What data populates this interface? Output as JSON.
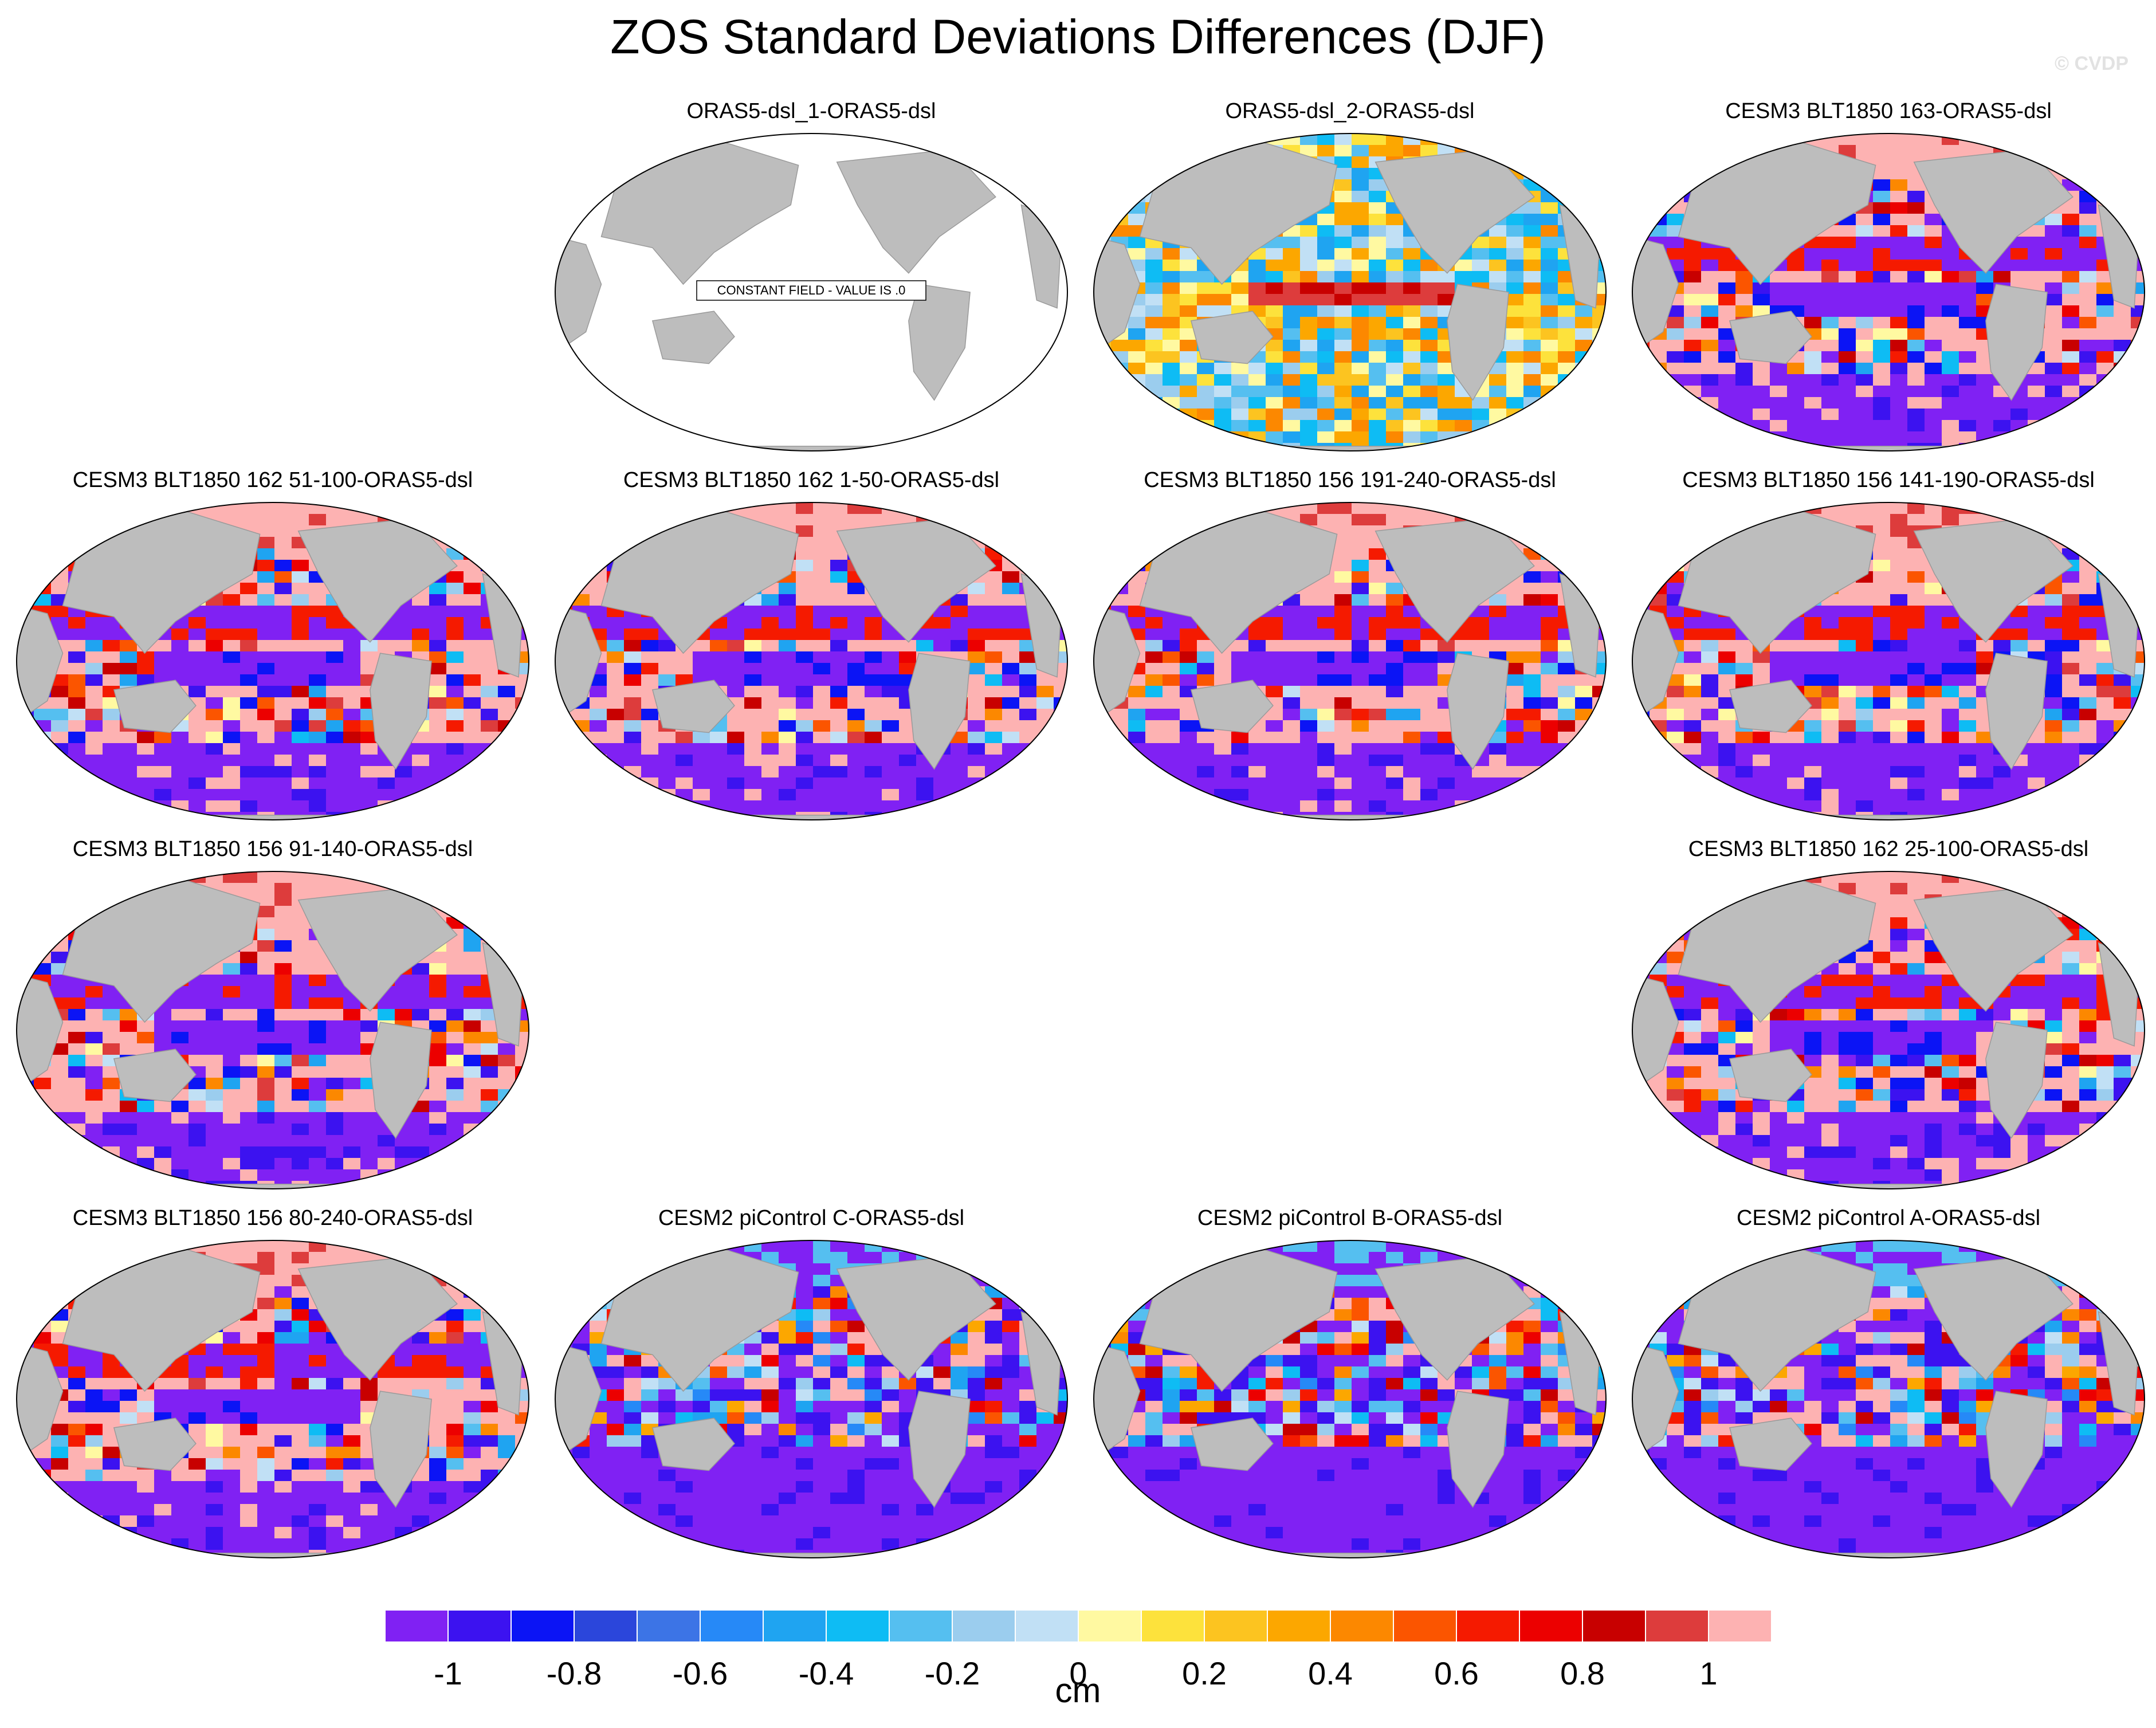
{
  "figure": {
    "title": "ZOS Standard Deviations Differences (DJF)",
    "credit": "© CVDP"
  },
  "colorbar": {
    "unit": "cm",
    "colors": [
      "#8021f3",
      "#3c12f0",
      "#0b14f5",
      "#2b46db",
      "#3c74e6",
      "#2689f7",
      "#1fa4f1",
      "#0ebcf4",
      "#55bff0",
      "#9bcdee",
      "#c1e0f5",
      "#fff9a1",
      "#fde23c",
      "#fcc420",
      "#fca700",
      "#fc8800",
      "#fb5500",
      "#f51a00",
      "#ec0000",
      "#c80000",
      "#dd3c3c",
      "#fdb2b2"
    ],
    "tick_labels": [
      "-1",
      "-0.8",
      "-0.6",
      "-0.4",
      "-0.2",
      "0",
      "0.2",
      "0.4",
      "0.6",
      "0.8",
      "1"
    ]
  },
  "panels": [
    {
      "title": "ORAS5-dsl_1-ORAS5-dsl",
      "pattern": "constant",
      "note": "CONSTANT FIELD - VALUE IS .0"
    },
    {
      "title": "ORAS5-dsl_2-ORAS5-dsl",
      "pattern": "mixed"
    },
    {
      "title": "CESM3 BLT1850 163-ORAS5-dsl",
      "pattern": "cesm3"
    },
    {
      "title": "CESM3 BLT1850 162 51-100-ORAS5-dsl",
      "pattern": "cesm3"
    },
    {
      "title": "CESM3 BLT1850 162 1-50-ORAS5-dsl",
      "pattern": "cesm3"
    },
    {
      "title": "CESM3 BLT1850 156 191-240-ORAS5-dsl",
      "pattern": "cesm3"
    },
    {
      "title": "CESM3 BLT1850 156 141-190-ORAS5-dsl",
      "pattern": "cesm3"
    },
    {
      "title": "CESM3 BLT1850 156 91-140-ORAS5-dsl",
      "pattern": "cesm3"
    },
    {
      "title": "CESM3 BLT1850 162 25-100-ORAS5-dsl",
      "pattern": "cesm3"
    },
    {
      "title": "CESM3 BLT1850 156 80-240-ORAS5-dsl",
      "pattern": "cesm3"
    },
    {
      "title": "CESM2 piControl C-ORAS5-dsl",
      "pattern": "cesm2"
    },
    {
      "title": "CESM2 piControl B-ORAS5-dsl",
      "pattern": "cesm2"
    },
    {
      "title": "CESM2 piControl A-ORAS5-dsl",
      "pattern": "cesm2"
    }
  ]
}
